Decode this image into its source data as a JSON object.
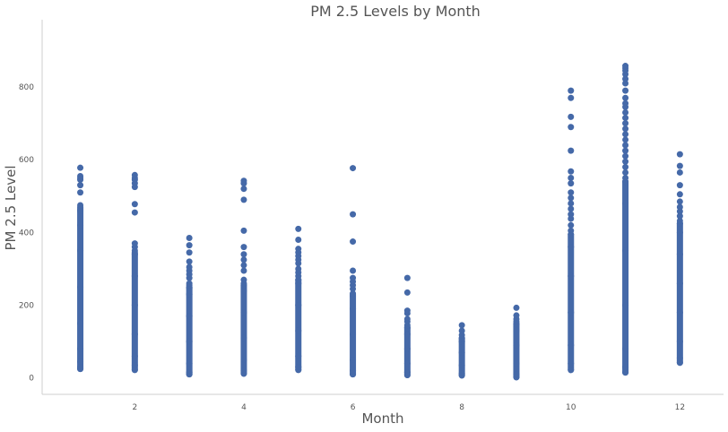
{
  "chart_data": {
    "type": "scatter",
    "title": "PM 2.5 Levels by Month",
    "xlabel": "Month",
    "ylabel": "PM 2.5 Level",
    "xlim": [
      0.3,
      12.8
    ],
    "ylim": [
      -45,
      985
    ],
    "x_ticks": [
      2,
      4,
      6,
      8,
      10,
      12
    ],
    "y_ticks": [
      0,
      200,
      400,
      600,
      800
    ],
    "grid": false,
    "marker_color": "#4569a8",
    "series": [
      {
        "months": [
          {
            "month": 1,
            "dense_min": 25,
            "dense_max": 470,
            "points": [
              25,
              30,
              45,
              80,
              150,
              250,
              350,
              420,
              460,
              475,
              510,
              530,
              545,
              550,
              555,
              578
            ]
          },
          {
            "month": 2,
            "dense_min": 22,
            "dense_max": 345,
            "points": [
              22,
              35,
              60,
              120,
              200,
              280,
              340,
              350,
              360,
              370,
              455,
              478,
              525,
              535,
              545,
              550,
              558
            ]
          },
          {
            "month": 3,
            "dense_min": 10,
            "dense_max": 250,
            "points": [
              10,
              15,
              40,
              100,
              170,
              230,
              248,
              255,
              260,
              275,
              285,
              295,
              305,
              320,
              345,
              365,
              385
            ]
          },
          {
            "month": 4,
            "dense_min": 12,
            "dense_max": 255,
            "points": [
              12,
              20,
              50,
              110,
              180,
              240,
              255,
              260,
              270,
              295,
              310,
              325,
              340,
              360,
              405,
              490,
              520,
              535,
              542
            ]
          },
          {
            "month": 5,
            "dense_min": 22,
            "dense_max": 270,
            "points": [
              22,
              30,
              60,
              130,
              200,
              260,
              270,
              280,
              290,
              300,
              315,
              325,
              335,
              345,
              355,
              380,
              410
            ]
          },
          {
            "month": 6,
            "dense_min": 10,
            "dense_max": 230,
            "points": [
              10,
              20,
              50,
              120,
              190,
              225,
              232,
              245,
              255,
              265,
              275,
              295,
              375,
              450,
              577
            ]
          },
          {
            "month": 7,
            "dense_min": 8,
            "dense_max": 140,
            "points": [
              8,
              15,
              40,
              80,
              120,
              138,
              145,
              155,
              162,
              178,
              185,
              235,
              275
            ]
          },
          {
            "month": 8,
            "dense_min": 7,
            "dense_max": 110,
            "points": [
              7,
              12,
              35,
              70,
              100,
              108,
              118,
              130,
              145
            ]
          },
          {
            "month": 9,
            "dense_min": 2,
            "dense_max": 150,
            "points": [
              2,
              10,
              40,
              90,
              130,
              148,
              155,
              162,
              172,
              193
            ]
          },
          {
            "month": 10,
            "dense_min": 22,
            "dense_max": 395,
            "points": [
              22,
              40,
              90,
              180,
              280,
              360,
              395,
              405,
              420,
              438,
              450,
              465,
              480,
              495,
              510,
              535,
              550,
              568,
              625,
              690,
              718,
              770,
              790
            ]
          },
          {
            "month": 11,
            "dense_min": 15,
            "dense_max": 540,
            "points": [
              15,
              30,
              80,
              200,
              350,
              480,
              540,
              550,
              565,
              580,
              595,
              610,
              625,
              640,
              655,
              670,
              685,
              700,
              715,
              730,
              745,
              755,
              770,
              790,
              810,
              822,
              835,
              845,
              852,
              858
            ]
          },
          {
            "month": 12,
            "dense_min": 42,
            "dense_max": 425,
            "points": [
              42,
              55,
              100,
              180,
              260,
              340,
              400,
              425,
              432,
              445,
              458,
              470,
              485,
              505,
              530,
              565,
              583,
              615
            ]
          }
        ]
      }
    ]
  }
}
